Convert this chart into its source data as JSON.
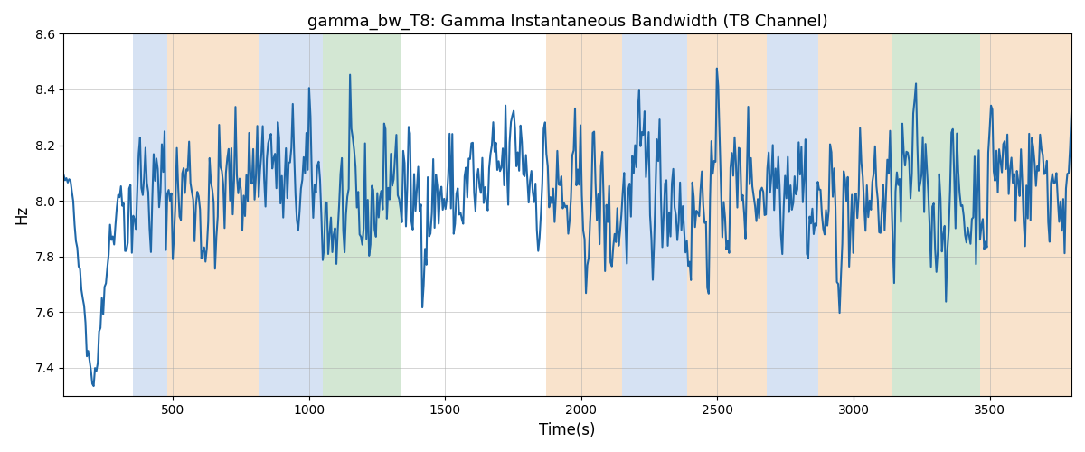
{
  "title": "gamma_bw_T8: Gamma Instantaneous Bandwidth (T8 Channel)",
  "xlabel": "Time(s)",
  "ylabel": "Hz",
  "ylim": [
    7.3,
    8.6
  ],
  "xlim": [
    100,
    3800
  ],
  "line_color": "#2068a8",
  "line_width": 1.5,
  "colored_bands": [
    {
      "xmin": 355,
      "xmax": 480,
      "color": "#aec6e8",
      "alpha": 0.5
    },
    {
      "xmin": 480,
      "xmax": 820,
      "color": "#f5c99a",
      "alpha": 0.5
    },
    {
      "xmin": 820,
      "xmax": 1050,
      "color": "#aec6e8",
      "alpha": 0.5
    },
    {
      "xmin": 1050,
      "xmax": 1340,
      "color": "#a8d0a8",
      "alpha": 0.5
    },
    {
      "xmin": 1870,
      "xmax": 2150,
      "color": "#f5c99a",
      "alpha": 0.5
    },
    {
      "xmin": 2150,
      "xmax": 2390,
      "color": "#aec6e8",
      "alpha": 0.5
    },
    {
      "xmin": 2390,
      "xmax": 2680,
      "color": "#f5c99a",
      "alpha": 0.5
    },
    {
      "xmin": 2680,
      "xmax": 2870,
      "color": "#aec6e8",
      "alpha": 0.5
    },
    {
      "xmin": 2870,
      "xmax": 3140,
      "color": "#f5c99a",
      "alpha": 0.5
    },
    {
      "xmin": 3140,
      "xmax": 3465,
      "color": "#a8d0a8",
      "alpha": 0.5
    },
    {
      "xmin": 3465,
      "xmax": 3800,
      "color": "#f5c99a",
      "alpha": 0.5
    }
  ],
  "xticks": [
    500,
    1000,
    1500,
    2000,
    2500,
    3000,
    3500
  ],
  "yticks": [
    7.4,
    7.6,
    7.8,
    8.0,
    8.2,
    8.4,
    8.6
  ],
  "grid_color": "#aaaaaa",
  "grid_alpha": 0.7,
  "grid_lw": 0.5,
  "background_color": "#ffffff",
  "n_points": 740,
  "t_start": 100,
  "t_end": 3800,
  "seed": 42
}
